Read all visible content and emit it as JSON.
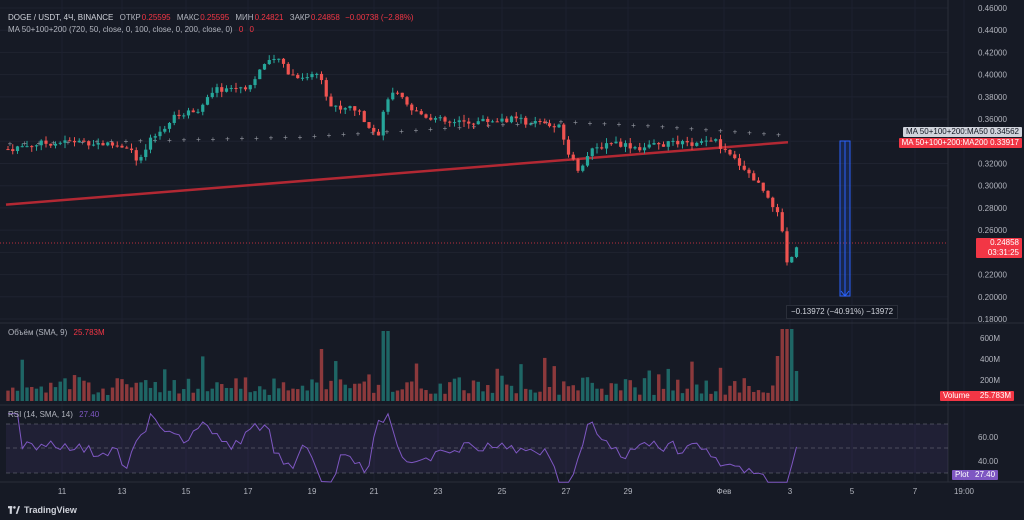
{
  "header": {
    "symbol": "DOGE / USDT, 4Ч, BINANCE",
    "open_label": "ОТКР",
    "open_value": "0.25595",
    "high_label": "МАКС",
    "high_value": "0.25595",
    "low_label": "МИН",
    "low_value": "0.24821",
    "close_label": "ЗАКР",
    "close_value": "0.24858",
    "change": "−0.00738 (−2.88%)"
  },
  "ma_legend": {
    "title": "MA 50+100+200 (720, 50, close, 0, 100, close, 0, 200, close, 0)",
    "values": [
      "0",
      "0"
    ]
  },
  "price_axis": {
    "ticks": [
      "0.46000",
      "0.44000",
      "0.42000",
      "0.40000",
      "0.38000",
      "0.36000",
      "0.34000",
      "0.32000",
      "0.30000",
      "0.28000",
      "0.26000",
      "0.24000",
      "0.22000",
      "0.20000",
      "0.18000"
    ],
    "ma50_tag": "MA 50+100+200:MA50  0.34562",
    "ma200_tag": "MA 50+100+200:MA200  0.33917",
    "last_price": "0.24858",
    "countdown": "03:31:25"
  },
  "measure": {
    "label": "−0.13972 (−40.91%) −13972"
  },
  "volume": {
    "title": "Объём (SMA, 9)",
    "value": "25.783M",
    "ticks": [
      "600M",
      "400M",
      "200M"
    ],
    "tag_label": "Volume",
    "tag_value": "25.783M"
  },
  "rsi": {
    "title": "RSI (14, SMA, 14)",
    "value": "27.40",
    "ticks": [
      "60.00",
      "40.00"
    ],
    "tag_label": "Plot",
    "tag_value": "27.40"
  },
  "time_axis": {
    "labels": [
      "11",
      "13",
      "15",
      "17",
      "19",
      "21",
      "23",
      "25",
      "27",
      "29",
      "Фев",
      "3",
      "5",
      "7",
      "19:00"
    ]
  },
  "footer": {
    "brand": "TradingView"
  },
  "colors": {
    "background": "#161a25",
    "up": "#26a69a",
    "down": "#ef5350",
    "ma200_line": "#b22833",
    "ma50_dots": "#9598a1",
    "rsi_line": "#7e57c2",
    "measure": "#2962ff"
  },
  "chart_data": {
    "type": "candlestick",
    "ylim": [
      0.18,
      0.46
    ],
    "ma200": {
      "start": 0.283,
      "end": 0.33917
    },
    "ma50_last": 0.34562,
    "last_close": 0.24858,
    "measure_change": -0.13972,
    "measure_change_pct": -40.91
  }
}
